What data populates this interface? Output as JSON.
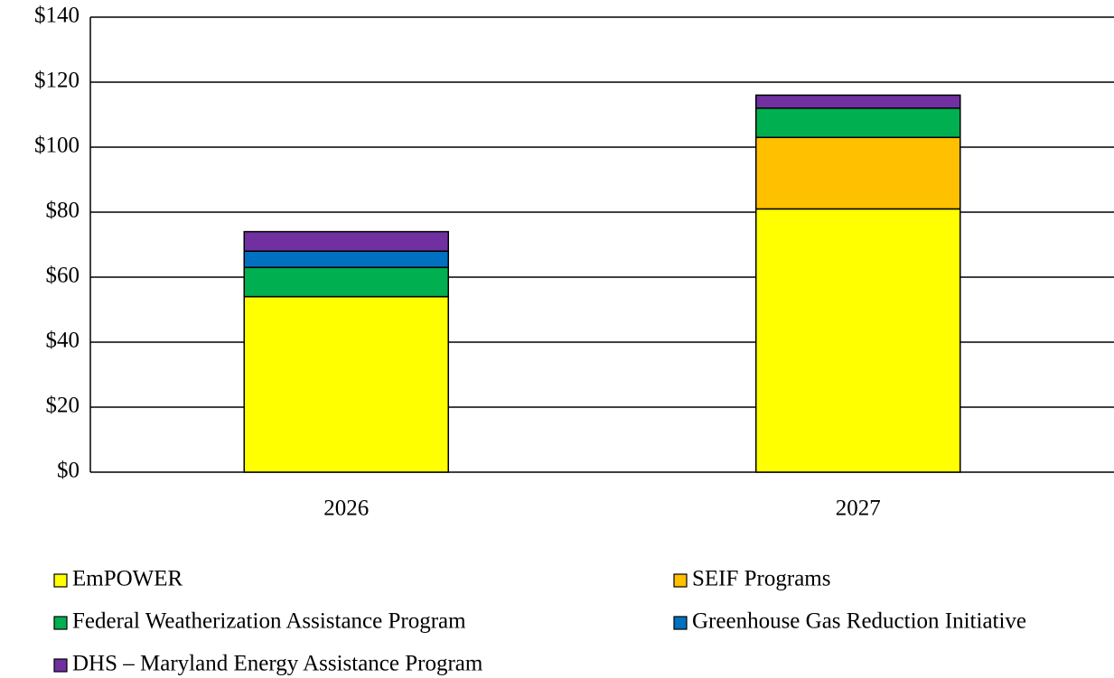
{
  "chart_data": {
    "type": "stacked_bar",
    "categories": [
      "2026",
      "2027"
    ],
    "series": [
      {
        "name": "EmPOWER",
        "color": "#ffff00",
        "values": [
          54,
          81
        ]
      },
      {
        "name": "SEIF Programs",
        "color": "#ffc000",
        "values": [
          0,
          22
        ]
      },
      {
        "name": "Federal Weatherization Assistance Program",
        "color": "#00b050",
        "values": [
          9,
          9
        ]
      },
      {
        "name": "Greenhouse Gas Reduction Initiative",
        "color": "#0070c0",
        "values": [
          5,
          0
        ]
      },
      {
        "name": "DHS – Maryland Energy Assistance Program",
        "color": "#7030a0",
        "values": [
          6,
          4
        ]
      }
    ],
    "ylim": [
      0,
      140
    ],
    "yticks": [
      {
        "value": 0,
        "label": "$0"
      },
      {
        "value": 20,
        "label": "$20"
      },
      {
        "value": 40,
        "label": "$40"
      },
      {
        "value": 60,
        "label": "$60"
      },
      {
        "value": 80,
        "label": "$80"
      },
      {
        "value": 100,
        "label": "$100"
      },
      {
        "value": 120,
        "label": "$120"
      },
      {
        "value": 140,
        "label": "$140"
      }
    ],
    "grid": true
  }
}
